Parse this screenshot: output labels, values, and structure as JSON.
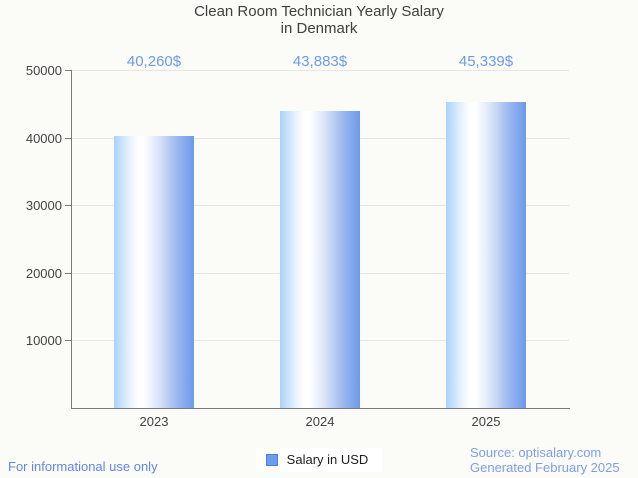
{
  "title": {
    "line1": "Clean Room Technician Yearly Salary",
    "line2": "in Denmark"
  },
  "chart_data": {
    "type": "bar",
    "categories": [
      "2023",
      "2024",
      "2025"
    ],
    "series": [
      {
        "name": "Salary in USD",
        "values": [
          40260,
          43883,
          45339
        ]
      }
    ],
    "value_labels": [
      "40,260$",
      "43,883$",
      "45,339$"
    ],
    "title": "Clean Room Technician Yearly Salary in Denmark",
    "xlabel": "",
    "ylabel": "",
    "ylim": [
      0,
      50000
    ],
    "yticks": [
      10000,
      20000,
      30000,
      40000,
      50000
    ],
    "grid": true,
    "legend_position": "bottom"
  },
  "legend": {
    "label": "Salary in USD"
  },
  "footer": {
    "left_note": "For informational use only",
    "source_line1": "Source: optisalary.com",
    "source_line2": "Generated February 2025"
  },
  "colors": {
    "background": "#fbfbf7",
    "title_text": "#3f3f3f",
    "axis_text": "#434343",
    "value_label": "#6c9bea",
    "gridline": "#e6e6e4",
    "axis_line": "#787878",
    "bar_gradient_left": "#a9d2fa",
    "bar_gradient_mid": "#ffffff",
    "bar_gradient_right": "#6d99ea",
    "legend_swatch_fill": "#6c9cec",
    "legend_swatch_border": "#4a7ddb",
    "footer_left_text": "#6287e5",
    "footer_right_text": "#7f9de9"
  }
}
